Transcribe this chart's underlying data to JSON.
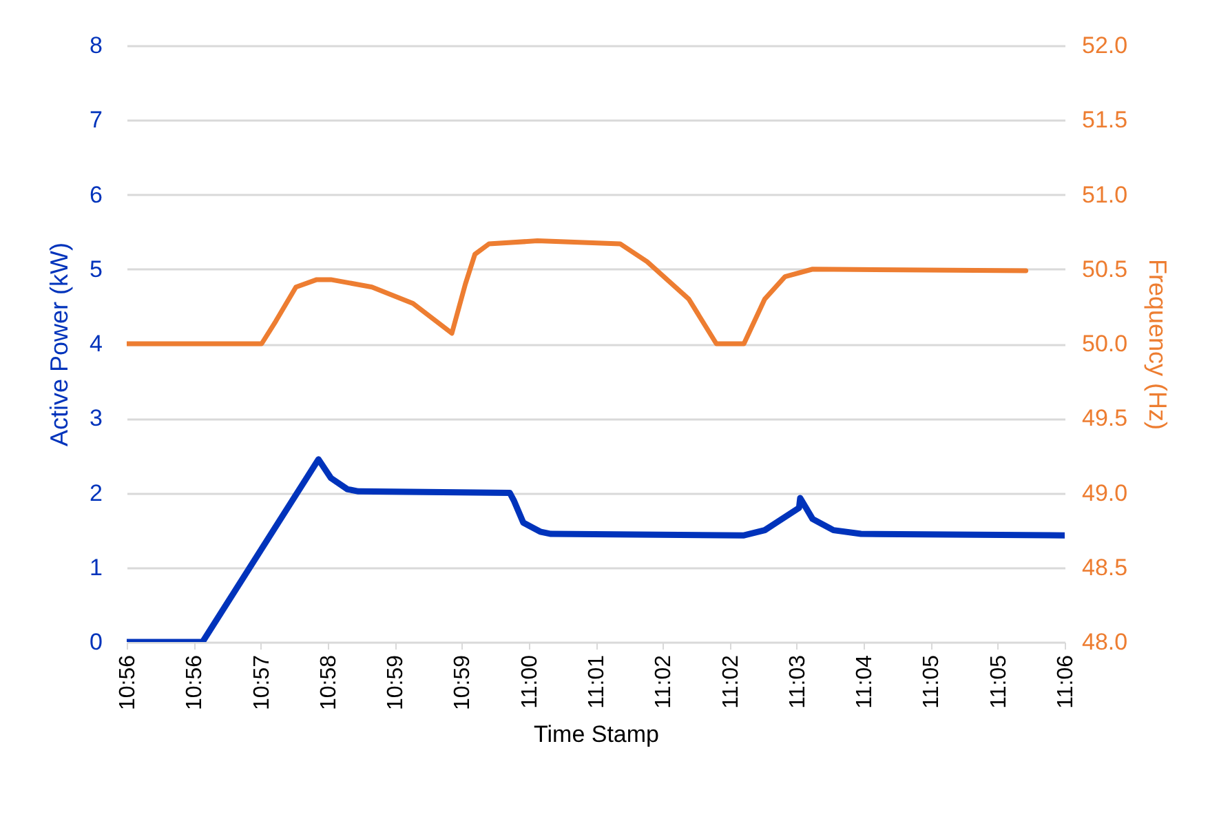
{
  "chart_data": {
    "type": "line",
    "xlabel": "Time Stamp",
    "ylabel": "Active Power (kW)",
    "y2label": "Frequency (Hz)",
    "xlim": [
      10.92708,
      11.10208
    ],
    "xticks": [
      {
        "value": 10.92708,
        "label": "10:56"
      },
      {
        "value": 10.93958,
        "label": "10:56"
      },
      {
        "value": 10.95208,
        "label": "10:57"
      },
      {
        "value": 10.96458,
        "label": "10:58"
      },
      {
        "value": 10.97708,
        "label": "10:59"
      },
      {
        "value": 10.98958,
        "label": "10:59"
      },
      {
        "value": 11.00208,
        "label": "11:00"
      },
      {
        "value": 11.01458,
        "label": "11:01"
      },
      {
        "value": 11.02708,
        "label": "11:02"
      },
      {
        "value": 11.03958,
        "label": "11:02"
      },
      {
        "value": 11.05208,
        "label": "11:03"
      },
      {
        "value": 11.06458,
        "label": "11:04"
      },
      {
        "value": 11.07708,
        "label": "11:05"
      },
      {
        "value": 11.08958,
        "label": "11:05"
      },
      {
        "value": 11.10208,
        "label": "11:06"
      }
    ],
    "ylim": [
      0,
      8
    ],
    "yticks": [
      0,
      1,
      2,
      3,
      4,
      5,
      6,
      7,
      8
    ],
    "y2lim": [
      48,
      52
    ],
    "y2ticks": [
      {
        "value": 48,
        "label": "48.0"
      },
      {
        "value": 48.5,
        "label": "48.5"
      },
      {
        "value": 49,
        "label": "49.0"
      },
      {
        "value": 49.5,
        "label": "49.5"
      },
      {
        "value": 50,
        "label": "50.0"
      },
      {
        "value": 50.5,
        "label": "50.5"
      },
      {
        "value": 51,
        "label": "51.0"
      },
      {
        "value": 51.5,
        "label": "51.5"
      },
      {
        "value": 52,
        "label": "52.0"
      }
    ],
    "grid": "y",
    "marker": "none",
    "line_style": "solid",
    "series": [
      {
        "color": "#0033bb",
        "axis": "y",
        "x": [
          10.92708,
          10.94122,
          10.96285,
          10.96516,
          10.96821,
          10.97031,
          10.99855,
          10.99929,
          11.00107,
          11.00422,
          11.00622,
          11.04223,
          11.04612,
          11.05252,
          11.05273,
          11.05504,
          11.05893,
          11.06407,
          11.10208
        ],
        "values": [
          0,
          0,
          2.45,
          2.2,
          2.05,
          2.02,
          2.0,
          1.9,
          1.6,
          1.48,
          1.45,
          1.43,
          1.5,
          1.8,
          1.93,
          1.65,
          1.5,
          1.45,
          1.43
        ]
      },
      {
        "color": "#ed7d31",
        "axis": "y2",
        "x": [
          10.92708,
          10.95225,
          10.95487,
          10.95865,
          10.96254,
          10.96516,
          10.97283,
          10.98049,
          10.98774,
          10.99026,
          10.99204,
          10.99467,
          11.0037,
          11.01913,
          11.02417,
          11.03194,
          11.03709,
          11.04223,
          11.04612,
          11.0499,
          11.05504,
          11.09484
        ],
        "values": [
          50.0,
          50.0,
          50.15,
          50.38,
          50.43,
          50.43,
          50.38,
          50.27,
          50.07,
          50.4,
          50.6,
          50.67,
          50.69,
          50.67,
          50.55,
          50.3,
          50.0,
          50.0,
          50.3,
          50.45,
          50.5,
          50.49
        ]
      }
    ]
  }
}
